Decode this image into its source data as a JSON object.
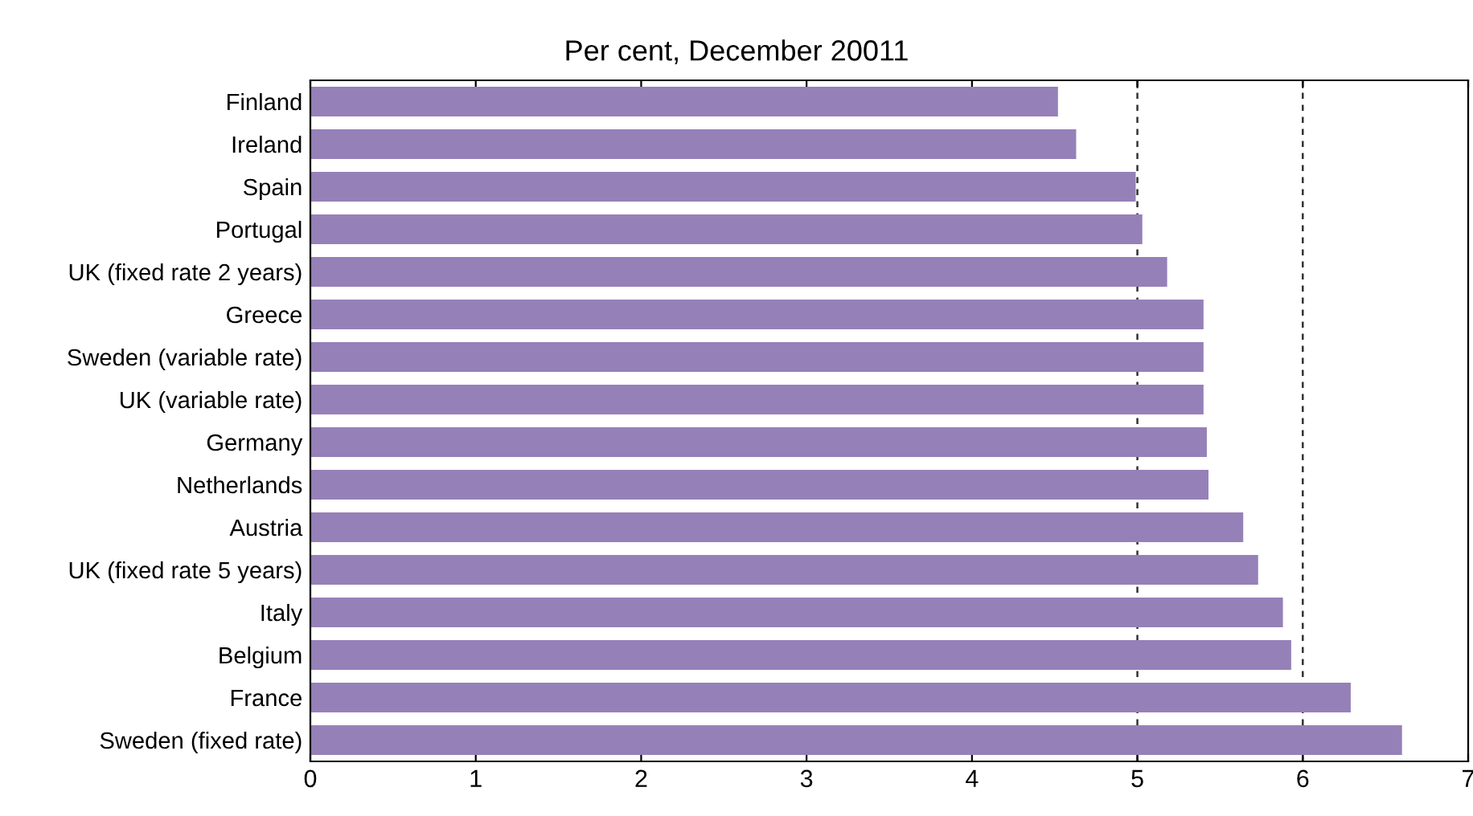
{
  "chart_data": {
    "type": "bar",
    "orientation": "horizontal",
    "title": "Per cent, December 20011",
    "categories": [
      "Finland",
      "Ireland",
      "Spain",
      "Portugal",
      "UK (fixed rate 2 years)",
      "Greece",
      "Sweden (variable rate)",
      "UK (variable rate)",
      "Germany",
      "Netherlands",
      "Austria",
      "UK (fixed rate 5 years)",
      "Italy",
      "Belgium",
      "France",
      "Sweden (fixed rate)"
    ],
    "values": [
      4.52,
      4.63,
      4.99,
      5.03,
      5.18,
      5.4,
      5.4,
      5.4,
      5.42,
      5.43,
      5.64,
      5.73,
      5.88,
      5.93,
      6.29,
      6.6
    ],
    "color": "#9680b8",
    "xlim": [
      0,
      7
    ],
    "xticks": [
      0,
      1,
      2,
      3,
      4,
      5,
      6,
      7
    ],
    "ref_lines": [
      {
        "axis": "x",
        "value": 5,
        "line_style": "dashed"
      },
      {
        "axis": "x",
        "value": 6,
        "line_style": "dashed"
      }
    ],
    "grid": false,
    "legend": false
  }
}
